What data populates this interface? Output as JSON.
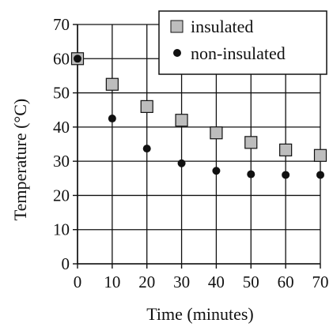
{
  "chart_data": {
    "type": "scatter",
    "xlabel": "Time (minutes)",
    "ylabel": "Temperature (°C)",
    "xlim": [
      0,
      70
    ],
    "ylim": [
      0,
      70
    ],
    "x_ticks": [
      "0",
      "10",
      "20",
      "30",
      "40",
      "50",
      "60",
      "70"
    ],
    "y_ticks": [
      "0",
      "10",
      "20",
      "30",
      "40",
      "50",
      "60",
      "70"
    ],
    "grid": true,
    "legend_position": "top-right",
    "series": [
      {
        "name": "insulated",
        "marker": "square",
        "color": "#bdbdbd",
        "x": [
          0,
          10,
          20,
          30,
          40,
          50,
          60,
          70
        ],
        "y": [
          60,
          52.5,
          46,
          42,
          38.3,
          35.5,
          33.3,
          31.7
        ]
      },
      {
        "name": "non-insulated",
        "marker": "circle",
        "color": "#111111",
        "x": [
          0,
          10,
          20,
          30,
          40,
          50,
          60,
          70
        ],
        "y": [
          60,
          42.5,
          33.7,
          29.4,
          27.2,
          26.2,
          26,
          26
        ]
      }
    ]
  }
}
